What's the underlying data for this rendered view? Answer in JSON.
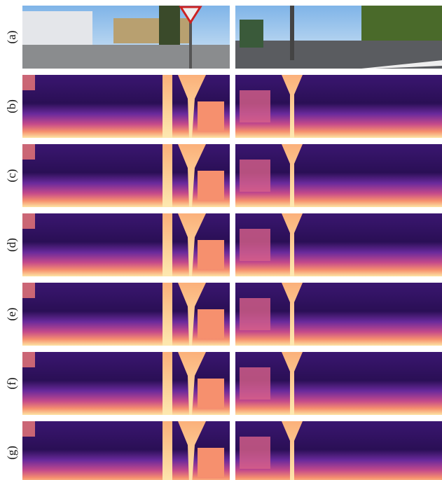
{
  "rows": [
    {
      "label": "(a)"
    },
    {
      "label": "(b)"
    },
    {
      "label": "(c)"
    },
    {
      "label": "(d)"
    },
    {
      "label": "(e)"
    },
    {
      "label": "(f)"
    },
    {
      "label": "(g)"
    }
  ]
}
